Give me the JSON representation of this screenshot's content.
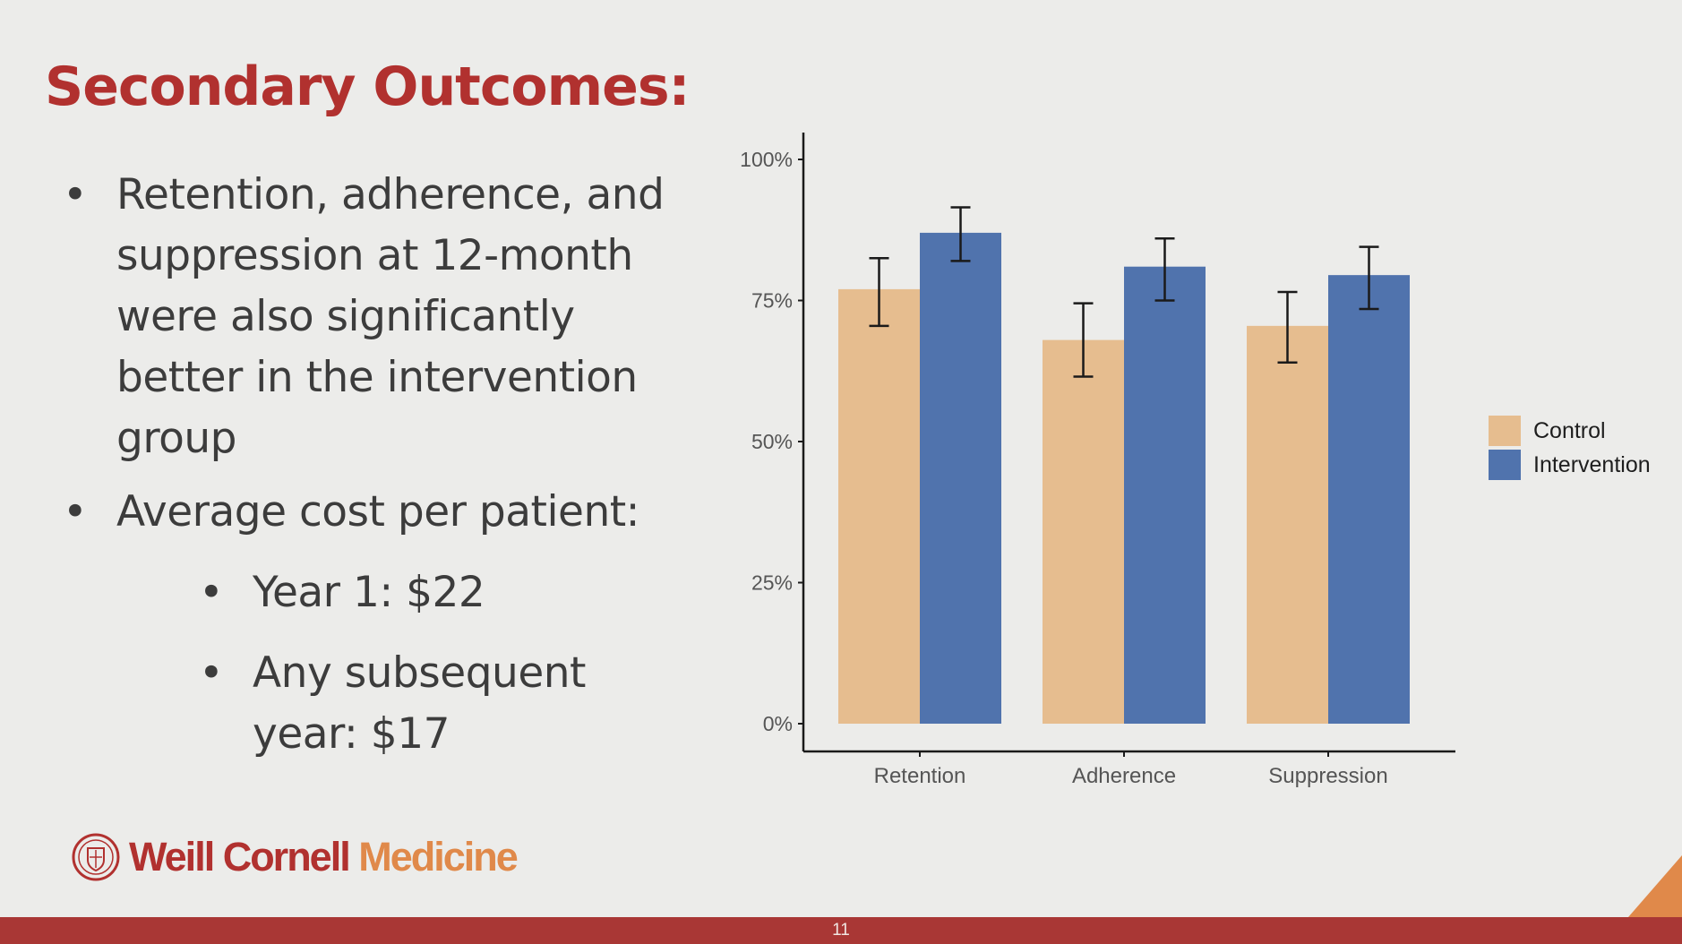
{
  "slide": {
    "title": "Secondary Outcomes:",
    "page_number": "11"
  },
  "bullets": [
    {
      "text": "Retention, adherence, and suppression at 12-month were also significantly better in the intervention group"
    },
    {
      "text": "Average cost per patient:"
    },
    {
      "text": "Year 1: $22"
    },
    {
      "text": "Any subsequent year: $17"
    }
  ],
  "bullet_glyph": "•",
  "logo": {
    "word1": "Weill Cornell",
    "word2": "Medicine"
  },
  "colors": {
    "title": "#b1312f",
    "control": "#e6bd8f",
    "intervention": "#5073ad",
    "footer": "#a93735",
    "accent": "#e0894a"
  },
  "chart_data": {
    "type": "bar",
    "categories": [
      "Retention",
      "Adherence",
      "Suppression"
    ],
    "series": [
      {
        "name": "Control",
        "values": [
          77,
          68,
          70.5
        ],
        "error_low": [
          70.5,
          61.5,
          64
        ],
        "error_high": [
          82.5,
          74.5,
          76.5
        ]
      },
      {
        "name": "Intervention",
        "values": [
          87,
          81,
          79.5
        ],
        "error_low": [
          82,
          75,
          73.5
        ],
        "error_high": [
          91.5,
          86,
          84.5
        ]
      }
    ],
    "yticks": [
      "0%",
      "25%",
      "50%",
      "75%",
      "100%"
    ],
    "ylim": [
      0,
      100
    ],
    "legend_position": "right",
    "grid": false
  }
}
